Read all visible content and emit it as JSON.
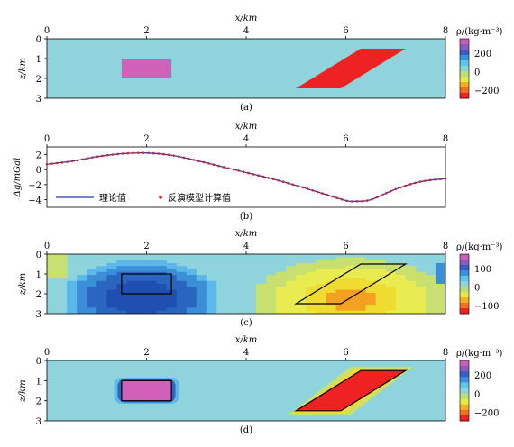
{
  "chart_data": [
    {
      "type": "heatmap",
      "caption": "(a)",
      "xlabel": "x/km",
      "ylabel": "z/km",
      "xlim": [
        0,
        8
      ],
      "ylim": [
        0,
        3
      ],
      "xticks": [
        "0",
        "2",
        "4",
        "6",
        "8"
      ],
      "yticks": [
        "0",
        "1",
        "2",
        "3"
      ],
      "colorbar_title": "ρ/(kg·m⁻³)",
      "colorbar_ticks": [
        "200",
        "0",
        "−200"
      ],
      "background_value": 0,
      "bodies": [
        {
          "shape": "rectangle",
          "density": 200,
          "x_range": [
            1.5,
            2.5
          ],
          "z_range": [
            1.0,
            2.0
          ],
          "color": "#d060b8"
        },
        {
          "shape": "parallelogram",
          "density": -300,
          "vertices": [
            [
              5.0,
              2.5
            ],
            [
              5.9,
              2.5
            ],
            [
              7.2,
              0.5
            ],
            [
              6.3,
              0.5
            ]
          ],
          "color": "#ee2222"
        }
      ]
    },
    {
      "type": "line",
      "caption": "(b)",
      "xlabel": "x/km",
      "ylabel": "Δg/mGal",
      "xlim": [
        0,
        8
      ],
      "ylim": [
        -5,
        3
      ],
      "xticks": [
        "0",
        "2",
        "4",
        "6",
        "8"
      ],
      "yticks": [
        "2",
        "0",
        "−2",
        "−4"
      ],
      "series": [
        {
          "name": "理论值",
          "style": "line",
          "color": "#1f3fb0",
          "x": [
            0,
            0.5,
            1.0,
            1.5,
            2.0,
            2.5,
            3.0,
            3.5,
            4.0,
            4.5,
            5.0,
            5.5,
            6.0,
            6.2,
            6.5,
            7.0,
            7.5,
            8.0
          ],
          "values": [
            0.7,
            1.1,
            1.7,
            2.1,
            2.2,
            1.9,
            1.2,
            0.4,
            -0.4,
            -1.2,
            -2.1,
            -3.1,
            -4.1,
            -4.2,
            -4.0,
            -2.6,
            -1.6,
            -1.2
          ]
        },
        {
          "name": "反演模型计算值",
          "style": "scatter",
          "color": "#e02020",
          "x": [
            0,
            0.5,
            1.0,
            1.5,
            2.0,
            2.5,
            3.0,
            3.5,
            4.0,
            4.5,
            5.0,
            5.5,
            6.0,
            6.2,
            6.5,
            7.0,
            7.5,
            8.0
          ],
          "values": [
            0.7,
            1.1,
            1.7,
            2.1,
            2.2,
            1.9,
            1.2,
            0.4,
            -0.4,
            -1.2,
            -2.1,
            -3.1,
            -4.1,
            -4.2,
            -4.0,
            -2.6,
            -1.6,
            -1.2
          ]
        }
      ],
      "legend": "bottom-left"
    },
    {
      "type": "heatmap",
      "caption": "(c)",
      "xlabel": "x/km",
      "ylabel": "z/km",
      "xlim": [
        0,
        8
      ],
      "ylim": [
        0,
        3
      ],
      "xticks": [
        "0",
        "2",
        "4",
        "6",
        "8"
      ],
      "yticks": [
        "0",
        "1",
        "2",
        "3"
      ],
      "colorbar_title": "ρ/(kg·m⁻³)",
      "colorbar_ticks": [
        "100",
        "0",
        "−100"
      ],
      "background_value": 0,
      "blobs": [
        {
          "center": [
            1.9,
            1.9
          ],
          "radius": [
            1.5,
            1.8
          ],
          "levels": [
            30,
            60,
            95
          ]
        },
        {
          "center": [
            6.1,
            2.2
          ],
          "radius": [
            1.9,
            2.1
          ],
          "levels": [
            -30,
            -60,
            -100
          ]
        }
      ],
      "outlines": [
        {
          "shape": "rectangle",
          "x_range": [
            1.5,
            2.5
          ],
          "z_range": [
            1.0,
            2.0
          ]
        },
        {
          "shape": "parallelogram",
          "vertices": [
            [
              5.0,
              2.5
            ],
            [
              5.9,
              2.5
            ],
            [
              7.2,
              0.5
            ],
            [
              6.3,
              0.5
            ]
          ]
        }
      ]
    },
    {
      "type": "heatmap",
      "caption": "(d)",
      "xlabel": "x/km",
      "ylabel": "z/km",
      "xlim": [
        0,
        8
      ],
      "ylim": [
        0,
        3
      ],
      "xticks": [
        "0",
        "2",
        "4",
        "6",
        "8"
      ],
      "yticks": [
        "0",
        "1",
        "2",
        "3"
      ],
      "colorbar_title": "ρ/(kg·m⁻³)",
      "colorbar_ticks": [
        "200",
        "0",
        "−200"
      ],
      "background_value": 0,
      "bodies": [
        {
          "shape": "rectangle",
          "density": 200,
          "x_range": [
            1.5,
            2.5
          ],
          "z_range": [
            1.0,
            2.0
          ],
          "color": "#d060b8"
        },
        {
          "shape": "parallelogram",
          "density": -300,
          "vertices": [
            [
              5.0,
              2.5
            ],
            [
              5.9,
              2.5
            ],
            [
              7.2,
              0.5
            ],
            [
              6.3,
              0.5
            ]
          ],
          "color": "#ee2222"
        }
      ],
      "outlines": [
        {
          "shape": "rectangle",
          "x_range": [
            1.5,
            2.5
          ],
          "z_range": [
            1.0,
            2.0
          ]
        },
        {
          "shape": "parallelogram",
          "vertices": [
            [
              5.0,
              2.5
            ],
            [
              5.9,
              2.5
            ],
            [
              7.2,
              0.5
            ],
            [
              6.3,
              0.5
            ]
          ]
        }
      ]
    }
  ],
  "colors": {
    "background": "#8fd3dc",
    "positive_scale": [
      "#5bb8e8",
      "#3a8fd8",
      "#2a66c0",
      "#1f4fb0",
      "#d060b8"
    ],
    "negative_scale": [
      "#c8e070",
      "#e8ec50",
      "#f0dc30",
      "#f4a020",
      "#ee2222"
    ]
  },
  "colorbar_colors": [
    "#c860b8",
    "#8a5cc0",
    "#3a5cc8",
    "#3a90e0",
    "#5ec4e8",
    "#8fd3dc",
    "#b6e07a",
    "#e6ea44",
    "#f7b020",
    "#f07020",
    "#ee2222"
  ]
}
